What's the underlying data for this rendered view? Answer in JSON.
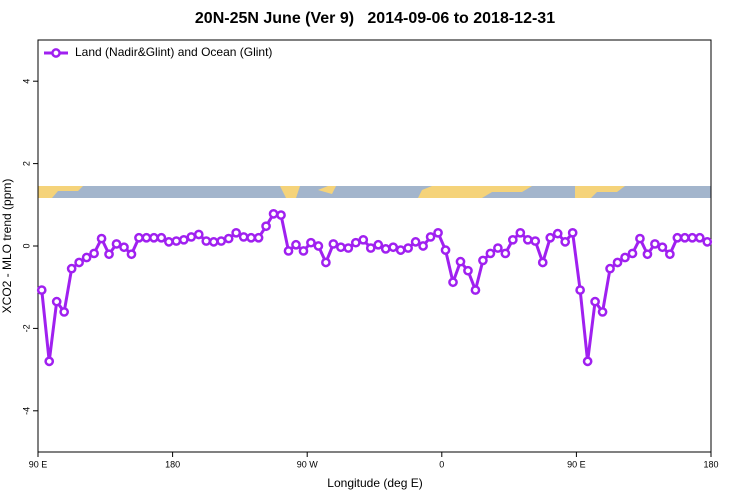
{
  "chart_data": {
    "type": "line",
    "title": "20N-25N June (Ver 9)   2014-09-06 to 2018-12-31",
    "x_label": "Longitude (deg E)",
    "y_label": "XCO2 - MLO trend (ppm)",
    "legend": "top-left",
    "xlim": [
      90,
      540
    ],
    "xticks": [
      {
        "value": 90,
        "label": "90 E"
      },
      180,
      {
        "value": 270,
        "label": "90 W"
      },
      {
        "value": 360,
        "label": "0"
      },
      {
        "value": 450,
        "label": "90 E"
      },
      {
        "value": 540,
        "label": "180"
      }
    ],
    "ylim": [
      -5,
      5
    ],
    "yticks": [
      -4,
      -2,
      0,
      2,
      4
    ],
    "x": [
      92.5,
      97.5,
      102.5,
      107.5,
      112.5,
      117.5,
      122.5,
      127.5,
      132.5,
      137.5,
      142.5,
      147.5,
      152.5,
      157.5,
      162.5,
      167.5,
      172.5,
      177.5,
      182.5,
      187.5,
      192.5,
      197.5,
      202.5,
      207.5,
      212.5,
      217.5,
      222.5,
      227.5,
      232.5,
      237.5,
      242.5,
      247.5,
      252.5,
      257.5,
      262.5,
      267.5,
      272.5,
      277.5,
      282.5,
      287.5,
      292.5,
      297.5,
      302.5,
      307.5,
      312.5,
      317.5,
      322.5,
      327.5,
      332.5,
      337.5,
      342.5,
      347.5,
      352.5,
      357.5,
      362.5,
      367.5,
      372.5,
      377.5,
      382.5,
      387.5,
      392.5,
      397.5,
      402.5,
      407.5,
      412.5,
      417.5,
      422.5,
      427.5,
      432.5,
      437.5,
      442.5,
      447.5,
      452.5,
      457.5,
      462.5,
      467.5,
      472.5,
      477.5,
      482.5,
      487.5,
      492.5,
      497.5,
      502.5,
      507.5,
      512.5,
      517.5,
      522.5,
      527.5,
      532.5,
      537.5
    ],
    "series": [
      {
        "name": "Land (Nadir&Glint) and Ocean (Glint)",
        "color": "#a020f0",
        "values": [
          -1.07,
          -2.8,
          -1.35,
          -1.6,
          -0.55,
          -0.4,
          -0.28,
          -0.18,
          0.18,
          -0.2,
          0.05,
          -0.03,
          -0.2,
          0.2,
          0.2,
          0.2,
          0.2,
          0.1,
          0.12,
          0.15,
          0.22,
          0.28,
          0.12,
          0.1,
          0.12,
          0.18,
          0.32,
          0.22,
          0.2,
          0.2,
          0.48,
          0.78,
          0.75,
          -0.12,
          0.03,
          -0.12,
          0.08,
          0.0,
          -0.4,
          0.05,
          -0.03,
          -0.05,
          0.08,
          0.15,
          -0.05,
          0.03,
          -0.07,
          -0.03,
          -0.1,
          -0.05,
          0.1,
          0.0,
          0.22,
          0.32,
          -0.1,
          -0.88,
          -0.38,
          -0.6,
          -1.07,
          -0.35,
          -0.18,
          -0.05,
          -0.18,
          0.15,
          0.32,
          0.15,
          0.12,
          -0.4,
          0.2,
          0.3,
          0.1,
          0.32,
          -1.07,
          -2.8,
          -1.35,
          -1.6,
          -0.55,
          -0.4,
          -0.28,
          -0.18,
          0.18,
          -0.2,
          0.05,
          -0.03,
          -0.2,
          0.2,
          0.2,
          0.2,
          0.2,
          0.1
        ]
      }
    ]
  }
}
